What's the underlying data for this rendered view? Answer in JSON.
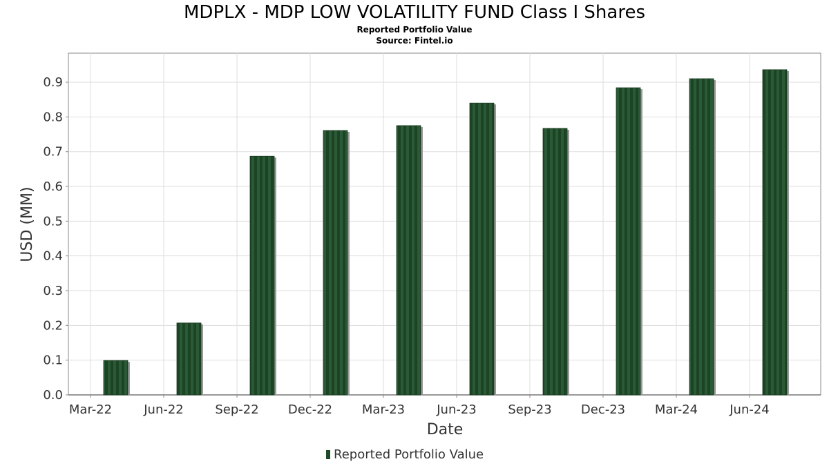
{
  "chart_data": {
    "type": "bar",
    "title": "MDPLX - MDP LOW VOLATILITY FUND Class I Shares",
    "subtitle": "Reported Portfolio Value",
    "source": "Source: Fintel.io",
    "xlabel": "Date",
    "ylabel": "USD (MM)",
    "ylim": [
      0,
      0.98
    ],
    "yticks": [
      "0.0",
      "0.1",
      "0.2",
      "0.3",
      "0.4",
      "0.5",
      "0.6",
      "0.7",
      "0.8",
      "0.9"
    ],
    "xticks": [
      "Mar-22",
      "Jun-22",
      "Sep-22",
      "Dec-22",
      "Mar-23",
      "Jun-23",
      "Sep-23",
      "Dec-23",
      "Mar-24",
      "Jun-24"
    ],
    "categories": [
      "2022-03-31",
      "2022-06-30",
      "2022-09-30",
      "2022-12-31",
      "2023-03-31",
      "2023-06-30",
      "2023-09-30",
      "2023-12-31",
      "2024-03-31",
      "2024-06-30"
    ],
    "series": [
      {
        "name": "Reported Portfolio Value",
        "color": "#1f4a2a",
        "values": [
          0.099,
          0.207,
          0.687,
          0.761,
          0.775,
          0.84,
          0.767,
          0.884,
          0.91,
          0.936
        ]
      }
    ],
    "grid": true,
    "legend": "bottom"
  }
}
